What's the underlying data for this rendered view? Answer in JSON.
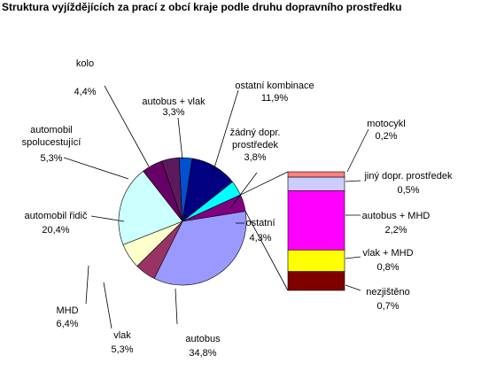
{
  "chart_data": {
    "type": "pie",
    "title": "Struktura vyjíždějících za prací z obcí kraje podle druhu dopravního prostředku",
    "pie": {
      "slices": [
        {
          "name": "kolo",
          "label": "kolo",
          "value_label": "4,4%",
          "value": 4.4,
          "color": "#5C1A5C"
        },
        {
          "name": "autobus + vlak",
          "label": "autobus + vlak",
          "value_label": "3,3%",
          "value": 3.3,
          "color": "#0050D0"
        },
        {
          "name": "ostatní kombinace",
          "label": "ostatní kombinace",
          "value_label": "11,9%",
          "value": 11.9,
          "color": "#000080"
        },
        {
          "name": "žádný dopr. prostředek",
          "label": "žádný dopr. prostředek",
          "value_label": "3,8%",
          "value": 3.8,
          "color": "#00FFFF"
        },
        {
          "name": "ostatní",
          "label": "ostatní",
          "value_label": "4,3%",
          "value": 4.3,
          "color": "#800080"
        },
        {
          "name": "autobus",
          "label": "autobus",
          "value_label": "34,8%",
          "value": 34.8,
          "color": "#9999FF"
        },
        {
          "name": "vlak",
          "label": "vlak",
          "value_label": "5,3%",
          "value": 5.3,
          "color": "#993366"
        },
        {
          "name": "MHD",
          "label": "MHD",
          "value_label": "6,4%",
          "value": 6.4,
          "color": "#FFFFCC"
        },
        {
          "name": "automobil řidič",
          "label": "automobil řidič",
          "value_label": "20,4%",
          "value": 20.4,
          "color": "#CCFFFF"
        },
        {
          "name": "automobil spolucestující",
          "label": "automobil spolucestující",
          "value_label": "5,3%",
          "value": 5.3,
          "color": "#660066"
        }
      ]
    },
    "breakdown_of": "ostatní",
    "bar": {
      "segments": [
        {
          "name": "motocykl",
          "label": "motocykl",
          "value_label": "0,2%",
          "value": 0.2,
          "color": "#FF8080"
        },
        {
          "name": "jiný dopr. prostředek",
          "label": "jiný dopr. prostředek",
          "value_label": "0,5%",
          "value": 0.5,
          "color": "#CCCCFF"
        },
        {
          "name": "autobus + MHD",
          "label": "autobus + MHD",
          "value_label": "2,2%",
          "value": 2.2,
          "color": "#FF00FF"
        },
        {
          "name": "vlak + MHD",
          "label": "vlak + MHD",
          "value_label": "0,8%",
          "value": 0.8,
          "color": "#FFFF00"
        },
        {
          "name": "nezjištěno",
          "label": "nezjištěno",
          "value_label": "0,7%",
          "value": 0.7,
          "color": "#800000"
        }
      ]
    }
  }
}
